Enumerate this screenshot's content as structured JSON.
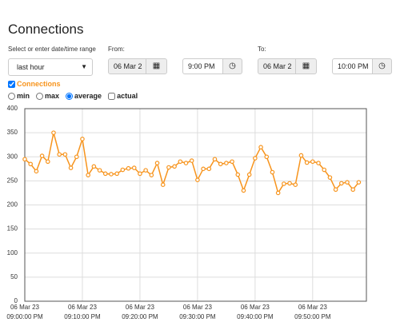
{
  "header": {
    "title": "Connections"
  },
  "controls": {
    "range_label": "Select or enter date/time range",
    "range_value": "last hour",
    "from_label": "From:",
    "from_date": "06 Mar 2",
    "from_time": "9:00 PM",
    "to_label": "To:",
    "to_date": "06 Mar 2",
    "to_time": "10:00 PM"
  },
  "options": {
    "min": "min",
    "max": "max",
    "average": "average",
    "actual": "actual"
  },
  "chart_data": {
    "type": "line",
    "x": [
      "06 Mar 23 09:00:00 PM",
      "06 Mar 23 09:01:00 PM",
      "06 Mar 23 09:02:00 PM",
      "06 Mar 23 09:03:00 PM",
      "06 Mar 23 09:04:00 PM",
      "06 Mar 23 09:05:00 PM",
      "06 Mar 23 09:06:00 PM",
      "06 Mar 23 09:07:00 PM",
      "06 Mar 23 09:08:00 PM",
      "06 Mar 23 09:09:00 PM",
      "06 Mar 23 09:10:00 PM",
      "06 Mar 23 09:11:00 PM",
      "06 Mar 23 09:12:00 PM",
      "06 Mar 23 09:13:00 PM",
      "06 Mar 23 09:14:00 PM",
      "06 Mar 23 09:15:00 PM",
      "06 Mar 23 09:16:00 PM",
      "06 Mar 23 09:17:00 PM",
      "06 Mar 23 09:18:00 PM",
      "06 Mar 23 09:19:00 PM",
      "06 Mar 23 09:20:00 PM",
      "06 Mar 23 09:21:00 PM",
      "06 Mar 23 09:22:00 PM",
      "06 Mar 23 09:23:00 PM",
      "06 Mar 23 09:24:00 PM",
      "06 Mar 23 09:25:00 PM",
      "06 Mar 23 09:26:00 PM",
      "06 Mar 23 09:27:00 PM",
      "06 Mar 23 09:28:00 PM",
      "06 Mar 23 09:29:00 PM",
      "06 Mar 23 09:30:00 PM",
      "06 Mar 23 09:31:00 PM",
      "06 Mar 23 09:32:00 PM",
      "06 Mar 23 09:33:00 PM",
      "06 Mar 23 09:34:00 PM",
      "06 Mar 23 09:35:00 PM",
      "06 Mar 23 09:36:00 PM",
      "06 Mar 23 09:37:00 PM",
      "06 Mar 23 09:38:00 PM",
      "06 Mar 23 09:39:00 PM",
      "06 Mar 23 09:40:00 PM",
      "06 Mar 23 09:41:00 PM",
      "06 Mar 23 09:42:00 PM",
      "06 Mar 23 09:43:00 PM",
      "06 Mar 23 09:44:00 PM",
      "06 Mar 23 09:45:00 PM",
      "06 Mar 23 09:46:00 PM",
      "06 Mar 23 09:47:00 PM",
      "06 Mar 23 09:48:00 PM",
      "06 Mar 23 09:49:00 PM",
      "06 Mar 23 09:50:00 PM",
      "06 Mar 23 09:51:00 PM",
      "06 Mar 23 09:52:00 PM",
      "06 Mar 23 09:53:00 PM",
      "06 Mar 23 09:54:00 PM",
      "06 Mar 23 09:55:00 PM",
      "06 Mar 23 09:56:00 PM",
      "06 Mar 23 09:57:00 PM",
      "06 Mar 23 09:58:00 PM"
    ],
    "series": [
      {
        "name": "Connections",
        "color": "#f7941d",
        "values": [
          295,
          285,
          270,
          302,
          290,
          350,
          305,
          305,
          277,
          300,
          337,
          262,
          280,
          272,
          265,
          264,
          265,
          273,
          276,
          277,
          265,
          272,
          262,
          287,
          242,
          278,
          280,
          290,
          287,
          292,
          252,
          275,
          275,
          295,
          285,
          287,
          290,
          263,
          230,
          263,
          297,
          320,
          300,
          268,
          225,
          244,
          245,
          242,
          303,
          288,
          290,
          287,
          273,
          257,
          232,
          245,
          247,
          232,
          247
        ]
      }
    ],
    "xlim": [
      "06 Mar 23 09:00:00 PM",
      "06 Mar 23 09:59:20 PM"
    ],
    "xticks": [
      "06 Mar 23 09:00:00 PM",
      "06 Mar 23 09:10:00 PM",
      "06 Mar 23 09:20:00 PM",
      "06 Mar 23 09:30:00 PM",
      "06 Mar 23 09:40:00 PM",
      "06 Mar 23 09:50:00 PM"
    ],
    "ylim": [
      0,
      400
    ],
    "yticks": [
      0,
      50,
      100,
      150,
      200,
      250,
      300,
      350,
      400
    ],
    "grid": true
  }
}
